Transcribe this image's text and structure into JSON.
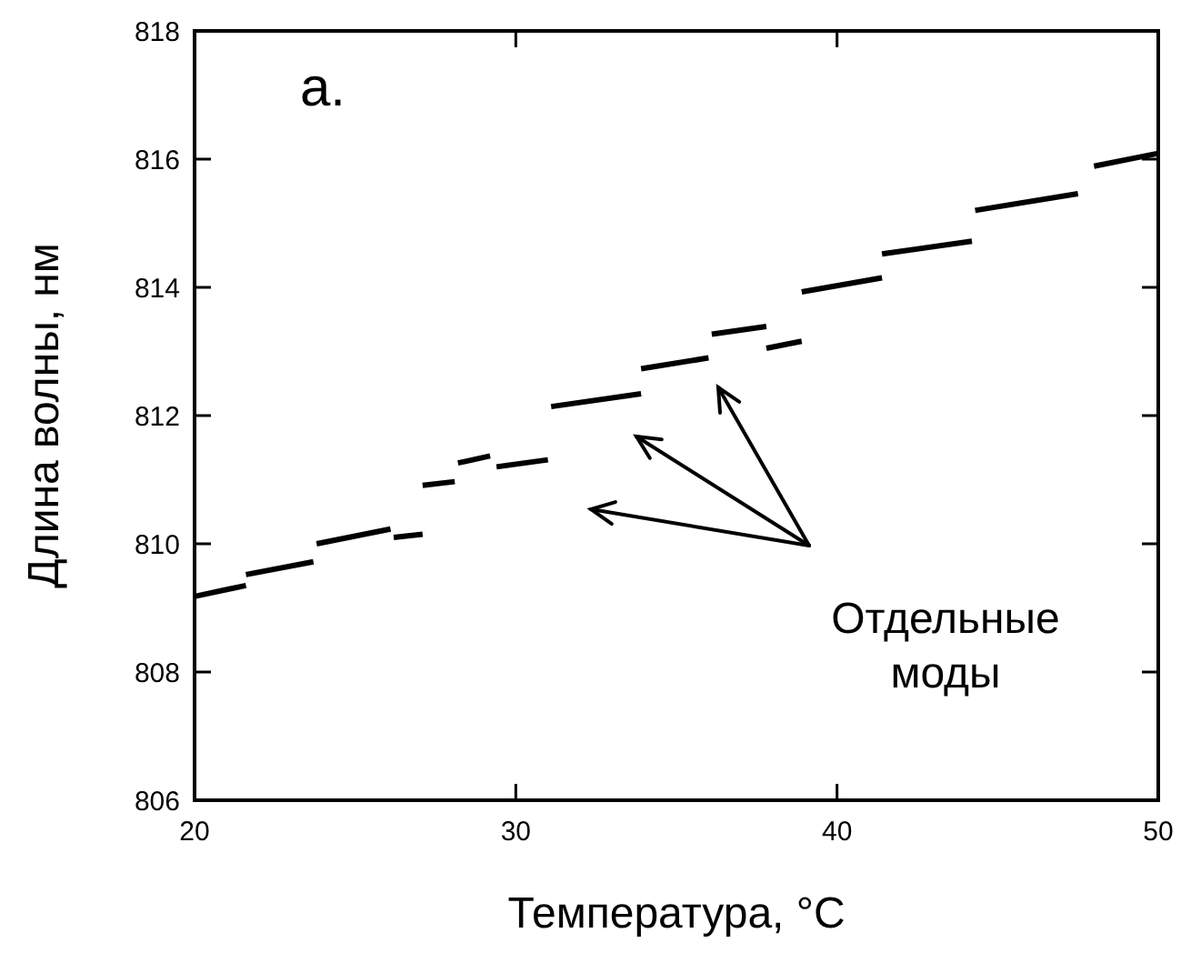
{
  "chart_data": {
    "type": "line",
    "xlabel": "Температура, °C",
    "ylabel": "Длина волны, нм",
    "xlim": [
      20,
      50
    ],
    "ylim": [
      806,
      818
    ],
    "xticks": [
      20,
      30,
      40,
      50
    ],
    "yticks": [
      806,
      808,
      810,
      812,
      814,
      816,
      818
    ],
    "grid": false,
    "marker": "none",
    "line_style": "solid",
    "annotations": [
      "a.",
      "Отдельные моды"
    ],
    "series": [
      {
        "color": "#000000",
        "x": [
          20,
          21.6
        ],
        "values": [
          809.18,
          809.35
        ]
      },
      {
        "color": "#000000",
        "x": [
          21.6,
          23.7
        ],
        "values": [
          809.52,
          809.72
        ]
      },
      {
        "color": "#000000",
        "x": [
          23.8,
          26.1
        ],
        "values": [
          810.0,
          810.23
        ]
      },
      {
        "color": "#000000",
        "x": [
          26.2,
          27.1
        ],
        "values": [
          810.1,
          810.15
        ]
      },
      {
        "color": "#000000",
        "x": [
          27.1,
          28.1
        ],
        "values": [
          810.91,
          810.97
        ]
      },
      {
        "color": "#000000",
        "x": [
          28.2,
          29.2
        ],
        "values": [
          811.26,
          811.37
        ]
      },
      {
        "color": "#000000",
        "x": [
          29.4,
          31.0
        ],
        "values": [
          811.2,
          811.31
        ]
      },
      {
        "color": "#000000",
        "x": [
          31.1,
          33.9
        ],
        "values": [
          812.14,
          812.34
        ]
      },
      {
        "color": "#000000",
        "x": [
          33.9,
          36.0
        ],
        "values": [
          812.73,
          812.9
        ]
      },
      {
        "color": "#000000",
        "x": [
          36.1,
          37.8
        ],
        "values": [
          813.27,
          813.39
        ]
      },
      {
        "color": "#000000",
        "x": [
          37.8,
          38.9
        ],
        "values": [
          813.05,
          813.16
        ]
      },
      {
        "color": "#000000",
        "x": [
          38.9,
          41.4
        ],
        "values": [
          813.93,
          814.15
        ]
      },
      {
        "color": "#000000",
        "x": [
          41.4,
          44.2
        ],
        "values": [
          814.52,
          814.72
        ]
      },
      {
        "color": "#000000",
        "x": [
          44.3,
          47.5
        ],
        "values": [
          815.2,
          815.46
        ]
      },
      {
        "color": "#000000",
        "x": [
          48.0,
          50
        ],
        "values": [
          815.89,
          816.09
        ]
      }
    ]
  }
}
